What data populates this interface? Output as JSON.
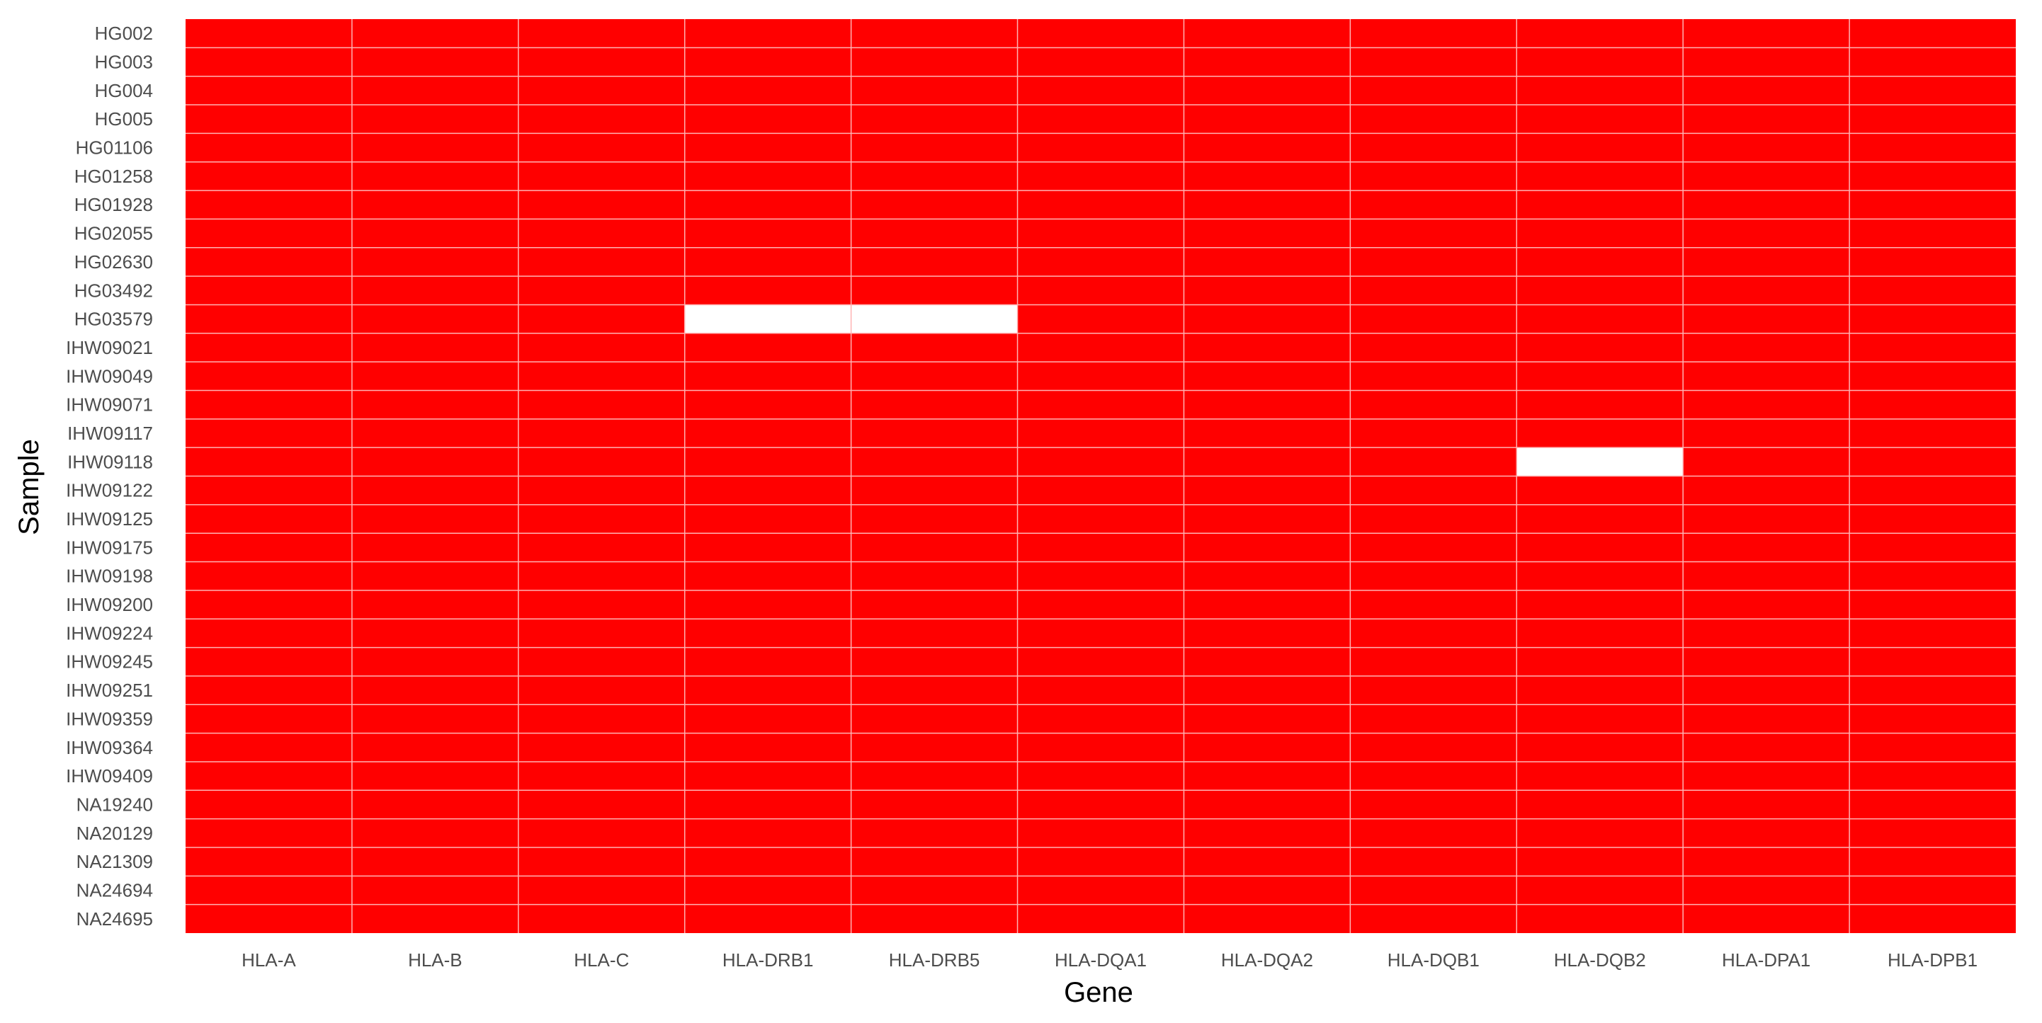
{
  "chart_data": {
    "type": "heatmap",
    "xlabel": "Gene",
    "ylabel": "Sample",
    "x_categories": [
      "HLA-A",
      "HLA-B",
      "HLA-C",
      "HLA-DRB1",
      "HLA-DRB5",
      "HLA-DQA1",
      "HLA-DQA2",
      "HLA-DQB1",
      "HLA-DQB2",
      "HLA-DPA1",
      "HLA-DPB1"
    ],
    "y_categories": [
      "HG002",
      "HG003",
      "HG004",
      "HG005",
      "HG01106",
      "HG01258",
      "HG01928",
      "HG02055",
      "HG02630",
      "HG03492",
      "HG03579",
      "IHW09021",
      "IHW09049",
      "IHW09071",
      "IHW09117",
      "IHW09118",
      "IHW09122",
      "IHW09125",
      "IHW09175",
      "IHW09198",
      "IHW09200",
      "IHW09224",
      "IHW09245",
      "IHW09251",
      "IHW09359",
      "IHW09364",
      "IHW09409",
      "NA19240",
      "NA20129",
      "NA21309",
      "NA24694",
      "NA24695"
    ],
    "missing_cells": [
      {
        "sample": "HG03579",
        "gene": "HLA-DRB1"
      },
      {
        "sample": "HG03579",
        "gene": "HLA-DRB5"
      },
      {
        "sample": "IHW09118",
        "gene": "HLA-DQB2"
      }
    ],
    "grid": true,
    "legend": "none"
  },
  "colors": {
    "filled": "#ff0000",
    "missing": "#ffffff",
    "grid_line": "#ffb3b3"
  }
}
